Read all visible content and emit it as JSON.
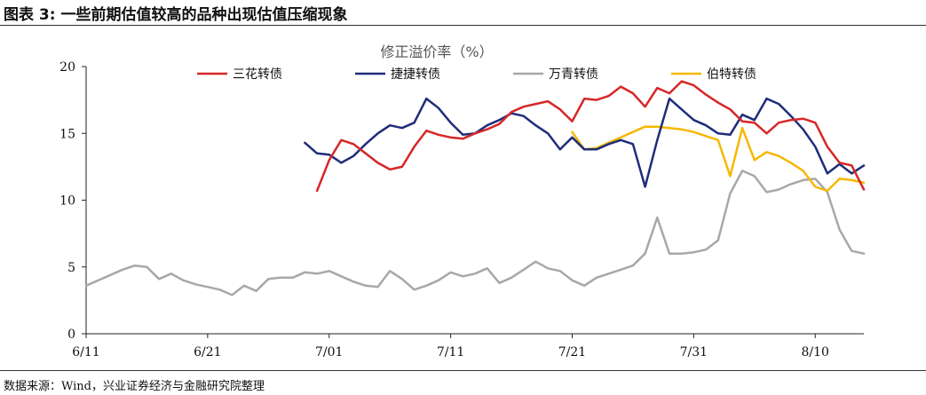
{
  "figure_title": "图表 3:  一些前期估值较高的品种出现估值压缩现象",
  "source": "数据来源：Wind，兴业证券经济与金融研究院整理",
  "chart_data": {
    "type": "line",
    "title": "修正溢价率（%）",
    "xlabel": "",
    "ylabel": "",
    "ylim": [
      0,
      20
    ],
    "yticks": [
      0,
      5,
      10,
      15,
      20
    ],
    "xlim": [
      "2019-06-11",
      "2019-08-14"
    ],
    "xticks": [
      {
        "date": "2019-06-11",
        "label": "6/11"
      },
      {
        "date": "2019-06-21",
        "label": "6/21"
      },
      {
        "date": "2019-07-01",
        "label": "7/01"
      },
      {
        "date": "2019-07-11",
        "label": "7/11"
      },
      {
        "date": "2019-07-21",
        "label": "7/21"
      },
      {
        "date": "2019-07-31",
        "label": "7/31"
      },
      {
        "date": "2019-08-10",
        "label": "8/10"
      }
    ],
    "grid": false,
    "legend_position": "top",
    "series": [
      {
        "name": "三花转债",
        "color": "#d62728",
        "points": [
          [
            "2019-06-30",
            10.7
          ],
          [
            "2019-07-01",
            13.0
          ],
          [
            "2019-07-02",
            14.5
          ],
          [
            "2019-07-03",
            14.2
          ],
          [
            "2019-07-04",
            13.5
          ],
          [
            "2019-07-05",
            12.8
          ],
          [
            "2019-07-06",
            12.3
          ],
          [
            "2019-07-07",
            12.5
          ],
          [
            "2019-07-08",
            14.0
          ],
          [
            "2019-07-09",
            15.2
          ],
          [
            "2019-07-10",
            14.9
          ],
          [
            "2019-07-11",
            14.7
          ],
          [
            "2019-07-12",
            14.6
          ],
          [
            "2019-07-13",
            15.0
          ],
          [
            "2019-07-14",
            15.3
          ],
          [
            "2019-07-15",
            15.7
          ],
          [
            "2019-07-16",
            16.6
          ],
          [
            "2019-07-17",
            17.0
          ],
          [
            "2019-07-18",
            17.2
          ],
          [
            "2019-07-19",
            17.4
          ],
          [
            "2019-07-20",
            16.8
          ],
          [
            "2019-07-21",
            15.9
          ],
          [
            "2019-07-22",
            17.6
          ],
          [
            "2019-07-23",
            17.5
          ],
          [
            "2019-07-24",
            17.8
          ],
          [
            "2019-07-25",
            18.5
          ],
          [
            "2019-07-26",
            18.0
          ],
          [
            "2019-07-27",
            17.0
          ],
          [
            "2019-07-28",
            18.4
          ],
          [
            "2019-07-29",
            18.0
          ],
          [
            "2019-07-30",
            18.9
          ],
          [
            "2019-07-31",
            18.6
          ],
          [
            "2019-08-01",
            17.9
          ],
          [
            "2019-08-02",
            17.3
          ],
          [
            "2019-08-03",
            16.8
          ],
          [
            "2019-08-04",
            15.9
          ],
          [
            "2019-08-05",
            15.8
          ],
          [
            "2019-08-06",
            15.0
          ],
          [
            "2019-08-07",
            15.8
          ],
          [
            "2019-08-08",
            16.0
          ],
          [
            "2019-08-09",
            16.1
          ],
          [
            "2019-08-10",
            15.8
          ],
          [
            "2019-08-11",
            14.0
          ],
          [
            "2019-08-12",
            12.8
          ],
          [
            "2019-08-13",
            12.6
          ],
          [
            "2019-08-14",
            10.8
          ]
        ]
      },
      {
        "name": "捷捷转债",
        "color": "#1f2d7a",
        "points": [
          [
            "2019-06-29",
            14.3
          ],
          [
            "2019-06-30",
            13.5
          ],
          [
            "2019-07-01",
            13.4
          ],
          [
            "2019-07-02",
            12.8
          ],
          [
            "2019-07-03",
            13.3
          ],
          [
            "2019-07-04",
            14.2
          ],
          [
            "2019-07-05",
            15.0
          ],
          [
            "2019-07-06",
            15.6
          ],
          [
            "2019-07-07",
            15.4
          ],
          [
            "2019-07-08",
            15.8
          ],
          [
            "2019-07-09",
            17.6
          ],
          [
            "2019-07-10",
            16.9
          ],
          [
            "2019-07-11",
            15.8
          ],
          [
            "2019-07-12",
            14.9
          ],
          [
            "2019-07-13",
            15.0
          ],
          [
            "2019-07-14",
            15.6
          ],
          [
            "2019-07-15",
            16.0
          ],
          [
            "2019-07-16",
            16.5
          ],
          [
            "2019-07-17",
            16.3
          ],
          [
            "2019-07-18",
            15.6
          ],
          [
            "2019-07-19",
            15.0
          ],
          [
            "2019-07-20",
            13.8
          ],
          [
            "2019-07-21",
            14.7
          ],
          [
            "2019-07-22",
            13.8
          ],
          [
            "2019-07-23",
            13.8
          ],
          [
            "2019-07-24",
            14.2
          ],
          [
            "2019-07-25",
            14.5
          ],
          [
            "2019-07-26",
            14.2
          ],
          [
            "2019-07-27",
            11.0
          ],
          [
            "2019-07-28",
            14.5
          ],
          [
            "2019-07-29",
            17.6
          ],
          [
            "2019-07-30",
            16.8
          ],
          [
            "2019-07-31",
            16.0
          ],
          [
            "2019-08-01",
            15.6
          ],
          [
            "2019-08-02",
            15.0
          ],
          [
            "2019-08-03",
            14.9
          ],
          [
            "2019-08-04",
            16.4
          ],
          [
            "2019-08-05",
            16.0
          ],
          [
            "2019-08-06",
            17.6
          ],
          [
            "2019-08-07",
            17.2
          ],
          [
            "2019-08-08",
            16.3
          ],
          [
            "2019-08-09",
            15.3
          ],
          [
            "2019-08-10",
            14.0
          ],
          [
            "2019-08-11",
            12.0
          ],
          [
            "2019-08-12",
            12.7
          ],
          [
            "2019-08-13",
            12.0
          ],
          [
            "2019-08-14",
            12.6
          ]
        ]
      },
      {
        "name": "万青转债",
        "color": "#a8a8a8",
        "points": [
          [
            "2019-06-11",
            3.6
          ],
          [
            "2019-06-12",
            4.0
          ],
          [
            "2019-06-13",
            4.4
          ],
          [
            "2019-06-14",
            4.8
          ],
          [
            "2019-06-15",
            5.1
          ],
          [
            "2019-06-16",
            5.0
          ],
          [
            "2019-06-17",
            4.1
          ],
          [
            "2019-06-18",
            4.5
          ],
          [
            "2019-06-19",
            4.0
          ],
          [
            "2019-06-20",
            3.7
          ],
          [
            "2019-06-21",
            3.5
          ],
          [
            "2019-06-22",
            3.3
          ],
          [
            "2019-06-23",
            2.9
          ],
          [
            "2019-06-24",
            3.6
          ],
          [
            "2019-06-25",
            3.2
          ],
          [
            "2019-06-26",
            4.1
          ],
          [
            "2019-06-27",
            4.2
          ],
          [
            "2019-06-28",
            4.2
          ],
          [
            "2019-06-29",
            4.6
          ],
          [
            "2019-06-30",
            4.5
          ],
          [
            "2019-07-01",
            4.7
          ],
          [
            "2019-07-02",
            4.3
          ],
          [
            "2019-07-03",
            3.9
          ],
          [
            "2019-07-04",
            3.6
          ],
          [
            "2019-07-05",
            3.5
          ],
          [
            "2019-07-06",
            4.7
          ],
          [
            "2019-07-07",
            4.1
          ],
          [
            "2019-07-08",
            3.3
          ],
          [
            "2019-07-09",
            3.6
          ],
          [
            "2019-07-10",
            4.0
          ],
          [
            "2019-07-11",
            4.6
          ],
          [
            "2019-07-12",
            4.3
          ],
          [
            "2019-07-13",
            4.5
          ],
          [
            "2019-07-14",
            4.9
          ],
          [
            "2019-07-15",
            3.8
          ],
          [
            "2019-07-16",
            4.2
          ],
          [
            "2019-07-17",
            4.8
          ],
          [
            "2019-07-18",
            5.4
          ],
          [
            "2019-07-19",
            4.9
          ],
          [
            "2019-07-20",
            4.7
          ],
          [
            "2019-07-21",
            4.0
          ],
          [
            "2019-07-22",
            3.6
          ],
          [
            "2019-07-23",
            4.2
          ],
          [
            "2019-07-24",
            4.5
          ],
          [
            "2019-07-25",
            4.8
          ],
          [
            "2019-07-26",
            5.1
          ],
          [
            "2019-07-27",
            6.0
          ],
          [
            "2019-07-28",
            8.7
          ],
          [
            "2019-07-29",
            6.0
          ],
          [
            "2019-07-30",
            6.0
          ],
          [
            "2019-07-31",
            6.1
          ],
          [
            "2019-08-01",
            6.3
          ],
          [
            "2019-08-02",
            7.0
          ],
          [
            "2019-08-03",
            10.5
          ],
          [
            "2019-08-04",
            12.2
          ],
          [
            "2019-08-05",
            11.8
          ],
          [
            "2019-08-06",
            10.6
          ],
          [
            "2019-08-07",
            10.8
          ],
          [
            "2019-08-08",
            11.2
          ],
          [
            "2019-08-09",
            11.5
          ],
          [
            "2019-08-10",
            11.6
          ],
          [
            "2019-08-11",
            10.6
          ],
          [
            "2019-08-12",
            7.8
          ],
          [
            "2019-08-13",
            6.2
          ],
          [
            "2019-08-14",
            6.0
          ]
        ]
      },
      {
        "name": "伯特转债",
        "color": "#f5b800",
        "points": [
          [
            "2019-07-21",
            15.1
          ],
          [
            "2019-07-22",
            13.8
          ],
          [
            "2019-07-23",
            13.9
          ],
          [
            "2019-07-24",
            14.3
          ],
          [
            "2019-07-25",
            14.7
          ],
          [
            "2019-07-26",
            15.1
          ],
          [
            "2019-07-27",
            15.5
          ],
          [
            "2019-07-28",
            15.5
          ],
          [
            "2019-07-29",
            15.4
          ],
          [
            "2019-07-30",
            15.3
          ],
          [
            "2019-07-31",
            15.1
          ],
          [
            "2019-08-01",
            14.8
          ],
          [
            "2019-08-02",
            14.5
          ],
          [
            "2019-08-03",
            11.8
          ],
          [
            "2019-08-04",
            15.4
          ],
          [
            "2019-08-05",
            13.0
          ],
          [
            "2019-08-06",
            13.6
          ],
          [
            "2019-08-07",
            13.3
          ],
          [
            "2019-08-08",
            12.8
          ],
          [
            "2019-08-09",
            12.2
          ],
          [
            "2019-08-10",
            11.0
          ],
          [
            "2019-08-11",
            10.7
          ],
          [
            "2019-08-12",
            11.6
          ],
          [
            "2019-08-13",
            11.5
          ],
          [
            "2019-08-14",
            11.3
          ]
        ]
      }
    ]
  }
}
